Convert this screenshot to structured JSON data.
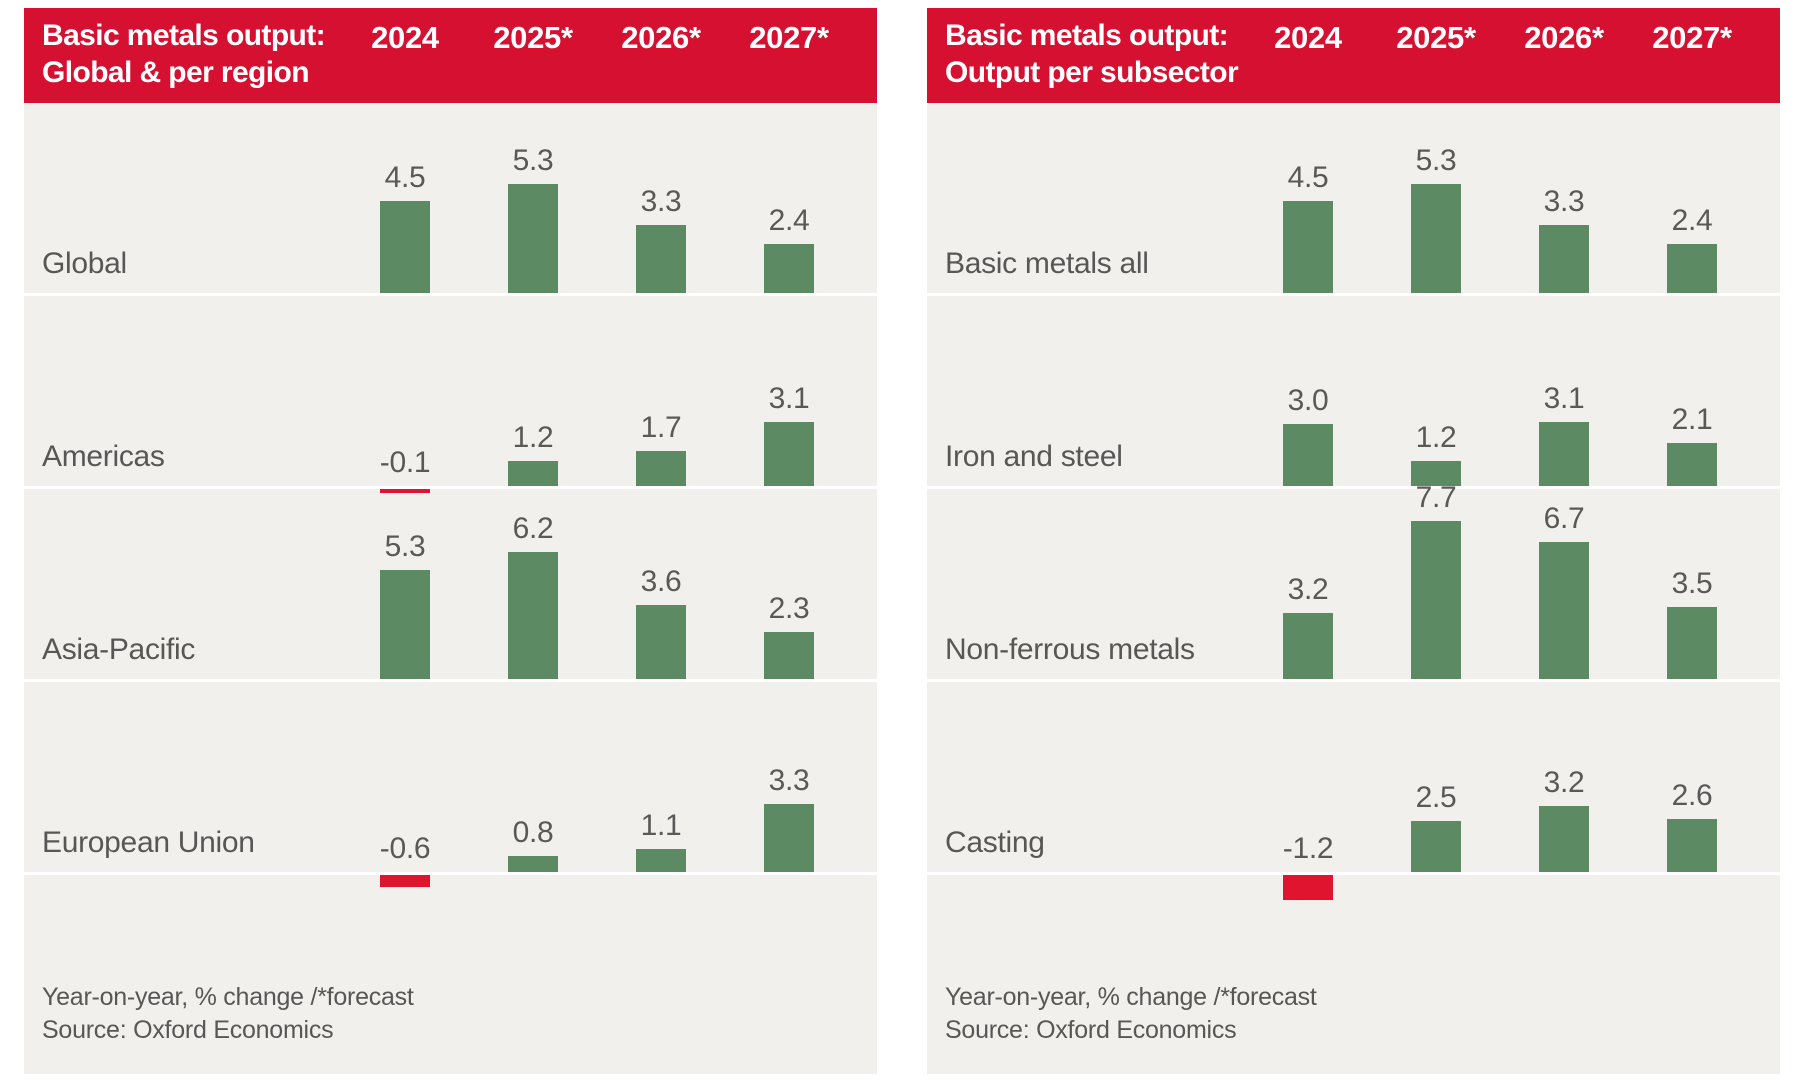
{
  "years": [
    "2024",
    "2025*",
    "2026*",
    "2027*"
  ],
  "footer": {
    "note": "Year-on-year, % change /*forecast",
    "source": "Source: Oxford Economics"
  },
  "colors": {
    "header_red": "#D61030",
    "bar_green": "#5C8B63",
    "bar_negative_red": "#E11430",
    "panel_bg": "#F1F0ED",
    "text_gray": "#575756"
  },
  "panels": [
    {
      "title_line1": "Basic metals output:",
      "title_line2": "Global & per region",
      "rows": [
        {
          "label": "Global",
          "values": [
            4.5,
            5.3,
            3.3,
            2.4
          ],
          "display": [
            "4.5",
            "5.3",
            "3.3",
            "2.4"
          ]
        },
        {
          "label": "Americas",
          "values": [
            -0.1,
            1.2,
            1.7,
            3.1
          ],
          "display": [
            "-0.1",
            "1.2",
            "1.7",
            "3.1"
          ]
        },
        {
          "label": "Asia-Pacific",
          "values": [
            5.3,
            6.2,
            3.6,
            2.3
          ],
          "display": [
            "5.3",
            "6.2",
            "3.6",
            "2.3"
          ]
        },
        {
          "label": "European Union",
          "values": [
            -0.6,
            0.8,
            1.1,
            3.3
          ],
          "display": [
            "-0.6",
            "0.8",
            "1.1",
            "3.3"
          ]
        }
      ]
    },
    {
      "title_line1": "Basic metals output:",
      "title_line2": "Output per subsector",
      "rows": [
        {
          "label": "Basic metals all",
          "values": [
            4.5,
            5.3,
            3.3,
            2.4
          ],
          "display": [
            "4.5",
            "5.3",
            "3.3",
            "2.4"
          ]
        },
        {
          "label": "Iron and steel",
          "values": [
            3.0,
            1.2,
            3.1,
            2.1
          ],
          "display": [
            "3.0",
            "1.2",
            "3.1",
            "2.1"
          ]
        },
        {
          "label": "Non-ferrous metals",
          "values": [
            3.2,
            7.7,
            6.7,
            3.5
          ],
          "display": [
            "3.2",
            "7.7",
            "6.7",
            "3.5"
          ]
        },
        {
          "label": "Casting",
          "values": [
            -1.2,
            2.5,
            3.2,
            2.6
          ],
          "display": [
            "-1.2",
            "2.5",
            "3.2",
            "2.6"
          ]
        }
      ]
    }
  ],
  "chart_data": [
    {
      "type": "bar",
      "title": "Basic metals output: Global & per region",
      "categories": [
        "2024",
        "2025*",
        "2026*",
        "2027*"
      ],
      "series": [
        {
          "name": "Global",
          "values": [
            4.5,
            5.3,
            3.3,
            2.4
          ]
        },
        {
          "name": "Americas",
          "values": [
            -0.1,
            1.2,
            1.7,
            3.1
          ]
        },
        {
          "name": "Asia-Pacific",
          "values": [
            5.3,
            6.2,
            3.6,
            2.3
          ]
        },
        {
          "name": "European Union",
          "values": [
            -0.6,
            0.8,
            1.1,
            3.3
          ]
        }
      ],
      "xlabel": "",
      "ylabel": "Year-on-year, % change",
      "note": "*forecast",
      "source": "Oxford Economics",
      "ylim": [
        -2,
        8
      ],
      "grid": false,
      "layout": "small-multiples-rows",
      "legend_position": "row-labels-left",
      "positive_bar_color": "#5C8B63",
      "negative_bar_color": "#E11430"
    },
    {
      "type": "bar",
      "title": "Basic metals output: Output per subsector",
      "categories": [
        "2024",
        "2025*",
        "2026*",
        "2027*"
      ],
      "series": [
        {
          "name": "Basic metals all",
          "values": [
            4.5,
            5.3,
            3.3,
            2.4
          ]
        },
        {
          "name": "Iron and steel",
          "values": [
            3.0,
            1.2,
            3.1,
            2.1
          ]
        },
        {
          "name": "Non-ferrous metals",
          "values": [
            3.2,
            7.7,
            6.7,
            3.5
          ]
        },
        {
          "name": "Casting",
          "values": [
            -1.2,
            2.5,
            3.2,
            2.6
          ]
        }
      ],
      "xlabel": "",
      "ylabel": "Year-on-year, % change",
      "note": "*forecast",
      "source": "Oxford Economics",
      "ylim": [
        -2,
        8
      ],
      "grid": false,
      "layout": "small-multiples-rows",
      "legend_position": "row-labels-left",
      "positive_bar_color": "#5C8B63",
      "negative_bar_color": "#E11430"
    }
  ]
}
